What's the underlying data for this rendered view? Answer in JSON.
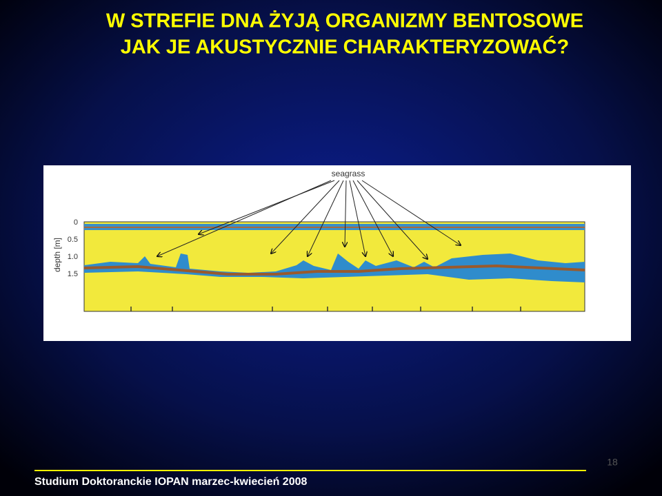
{
  "slide": {
    "title_lines": [
      "W STREFIE DNA ŻYJĄ ORGANIZMY BENTOSOWE",
      "JAK JE AKUSTYCZNIE CHARAKTERYZOWAĆ?"
    ],
    "figure": {
      "annotation": "seagrass",
      "y_axis_label": "depth  [m]",
      "y_tick_labels": [
        "0",
        "0.5",
        "1.0",
        "1.5"
      ]
    },
    "footer": "Studium Doktoranckie IOPAN marzec-kwiecień 2008",
    "page_number": "18"
  }
}
